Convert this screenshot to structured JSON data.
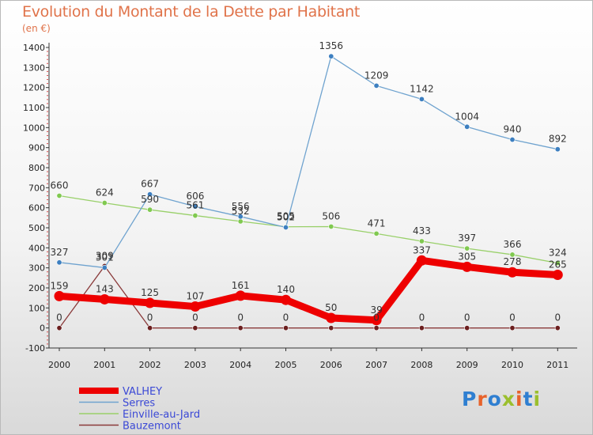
{
  "title": "Evolution du Montant de la Dette par Habitant",
  "subtitle": "(en €)",
  "logo": {
    "text": "Proxiti",
    "colors": [
      "#2f7fd1",
      "#e8632b",
      "#2f7fd1",
      "#9bbf2e",
      "#e8632b",
      "#2f7fd1",
      "#9bbf2e"
    ]
  },
  "chart_data": {
    "type": "line",
    "x": [
      "2000",
      "2001",
      "2002",
      "2003",
      "2004",
      "2005",
      "2006",
      "2007",
      "2008",
      "2009",
      "2010",
      "2011"
    ],
    "ylim": [
      -100,
      1400
    ],
    "yticks": [
      -100,
      0,
      100,
      200,
      300,
      400,
      500,
      600,
      700,
      800,
      900,
      1000,
      1100,
      1200,
      1300,
      1400
    ],
    "grid": false,
    "legend_position": "bottom-left",
    "series": [
      {
        "name": "VALHEY",
        "color": "#ee0000",
        "values": [
          159,
          143,
          125,
          107,
          161,
          140,
          50,
          39,
          337,
          305,
          278,
          265
        ],
        "labels": [
          "159",
          "143",
          "125",
          "107",
          "161",
          "140",
          "50",
          "39",
          "337",
          "305",
          "278",
          "265"
        ]
      },
      {
        "name": "Serres",
        "color": "#6fa3cf",
        "values": [
          327,
          301,
          667,
          606,
          556,
          502,
          1356,
          1209,
          1142,
          1004,
          940,
          892
        ],
        "labels": [
          "327",
          "301",
          "667",
          "606",
          "556",
          "502",
          "1356",
          "1209",
          "1142",
          "1004",
          "940",
          "892"
        ]
      },
      {
        "name": "Einville-au-Jard",
        "color": "#99d06a",
        "values": [
          660,
          624,
          590,
          561,
          532,
          505,
          506,
          471,
          433,
          397,
          366,
          324
        ],
        "labels": [
          "660",
          "624",
          "590",
          "561",
          "532",
          "505",
          "506",
          "471",
          "433",
          "397",
          "366",
          "324"
        ]
      },
      {
        "name": "Bauzemont",
        "color": "#8a3a3a",
        "values": [
          0,
          309,
          0,
          0,
          0,
          0,
          0,
          0,
          0,
          0,
          0,
          0
        ],
        "labels": [
          "0",
          "309",
          "0",
          "0",
          "0",
          "0",
          "",
          "0",
          "0",
          "0",
          "0",
          "0"
        ]
      }
    ]
  }
}
